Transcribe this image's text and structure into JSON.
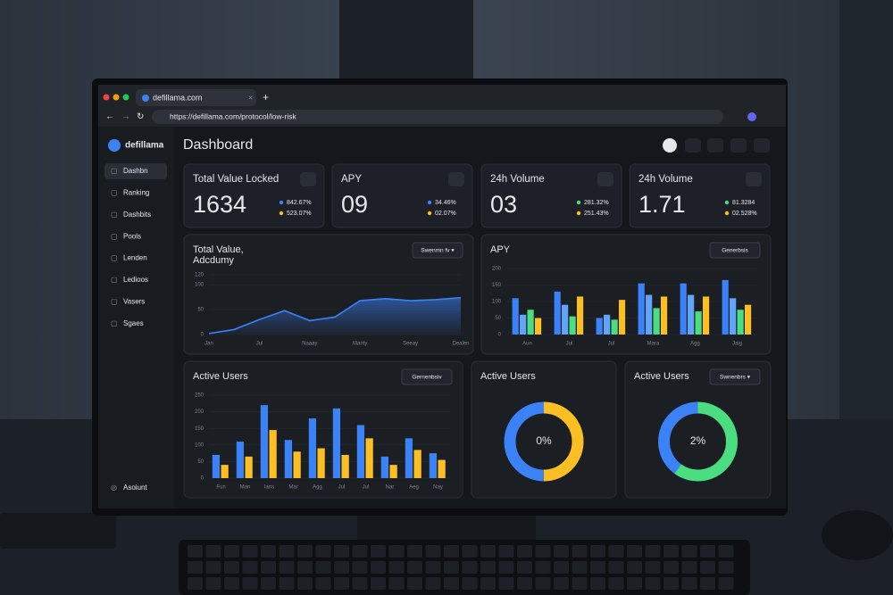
{
  "browser": {
    "tab": "defillama.com",
    "url": "https://defillama.com/protocol/low-risk"
  },
  "sidebar": {
    "brand": "defillama",
    "items": [
      "Dashbn",
      "Ranking",
      "Dashbits",
      "Pools",
      "Lenden",
      "Ledioos",
      "Vasers",
      "Sgaes"
    ],
    "footer": "Asoiunt"
  },
  "header": {
    "title": "Dashboard"
  },
  "cards": [
    {
      "title": "Total Value Locked",
      "value": "1634",
      "legend": [
        "842.67%",
        "523.07%"
      ],
      "colors": [
        "#3b82f6",
        "#fbbf24"
      ]
    },
    {
      "title": "APY",
      "value": "09",
      "legend": [
        "34.46%",
        "02.07%"
      ],
      "colors": [
        "#3b82f6",
        "#fbbf24"
      ]
    },
    {
      "title": "24h Volume",
      "value": "03",
      "legend": [
        "281.32%",
        "251.43%"
      ],
      "colors": [
        "#4ade80",
        "#fbbf24"
      ]
    },
    {
      "title": "24h Volume",
      "value": "1.71",
      "legend": [
        "81.3284",
        "02.528%"
      ],
      "colors": [
        "#4ade80",
        "#fbbf24"
      ]
    }
  ],
  "charts": [
    {
      "type": "line",
      "title": [
        "Total Value,",
        "Adcdumy"
      ],
      "button": "Swenmn fv ▾",
      "color": "#3b82f6",
      "categories": [
        "Jan",
        null,
        "Jul",
        null,
        "Naaay",
        null,
        "Marity",
        null,
        "Seeay",
        null,
        "Dealen"
      ],
      "values": [
        2,
        10,
        30,
        48,
        28,
        35,
        68,
        72,
        68,
        70,
        74
      ],
      "ylim": [
        0,
        120
      ],
      "yticks": [
        0,
        50,
        100,
        120
      ]
    },
    {
      "type": "bar",
      "title": [
        "APY"
      ],
      "button": "Generbsis",
      "categories": [
        "Aun",
        "Jul",
        "Jul",
        "Mara",
        "Agg",
        "Jaig"
      ],
      "series": [
        {
          "color": "#3b82f6",
          "values": [
            110,
            130,
            50,
            155,
            155,
            165
          ]
        },
        {
          "color": "#60a5fa",
          "values": [
            60,
            90,
            60,
            120,
            120,
            110
          ]
        },
        {
          "color": "#4ade80",
          "values": [
            75,
            55,
            45,
            80,
            70,
            75
          ]
        },
        {
          "color": "#fbbf24",
          "values": [
            50,
            115,
            105,
            115,
            115,
            90
          ]
        }
      ],
      "ylim": [
        0,
        200
      ],
      "yticks": [
        0,
        50,
        100,
        150,
        200
      ]
    },
    {
      "type": "bar",
      "title": [
        "Active Users"
      ],
      "button": "Gernenbsiv",
      "categories": [
        "Fun",
        "Man",
        "Ians",
        "Mar",
        "Agg",
        "Jul",
        "Jul",
        "Nar",
        "Aeg",
        "Nay"
      ],
      "series": [
        {
          "color": "#3b82f6",
          "values": [
            70,
            110,
            220,
            115,
            180,
            210,
            160,
            65,
            120,
            75
          ]
        },
        {
          "color": "#fbbf24",
          "values": [
            40,
            65,
            145,
            80,
            90,
            70,
            120,
            40,
            85,
            55
          ]
        }
      ],
      "ylim": [
        0,
        250
      ],
      "yticks": [
        0,
        50,
        100,
        150,
        200,
        250
      ]
    },
    {
      "type": "donut",
      "title": [
        "Active Users"
      ],
      "center": "0%",
      "series": [
        {
          "color": "#fbbf24",
          "values": [
            50
          ]
        },
        {
          "color": "#3b82f6",
          "values": [
            50
          ]
        }
      ]
    },
    {
      "type": "donut",
      "title": [
        "Active Users"
      ],
      "button": "Swnenbrs ▾",
      "center": "2%",
      "series": [
        {
          "color": "#4ade80",
          "values": [
            60
          ]
        },
        {
          "color": "#3b82f6",
          "values": [
            40
          ]
        }
      ]
    }
  ]
}
